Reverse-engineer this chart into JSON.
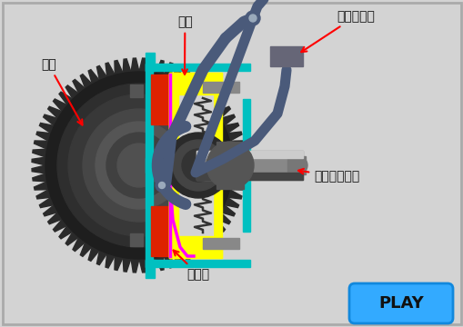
{
  "bg_color": "#d3d3d3",
  "labels": {
    "flywheel": "飛輪",
    "pressure_plate": "壓板",
    "clutch_pedal": "離合器踏板",
    "gearbox_input": "變速箱輸入軸",
    "friction_disc": "摩擦盤"
  },
  "play_button_color": "#33aaff",
  "play_button_text": "PLAY",
  "teal_color": "#00c0c0",
  "yellow_color": "#ffff00",
  "red_color": "#dd2200",
  "magenta_color": "#ff00ff",
  "dark_gray": "#2a2a2a",
  "mid_gray": "#555555",
  "arm_color": "#4a5a7a",
  "shaft_color": "#888888"
}
